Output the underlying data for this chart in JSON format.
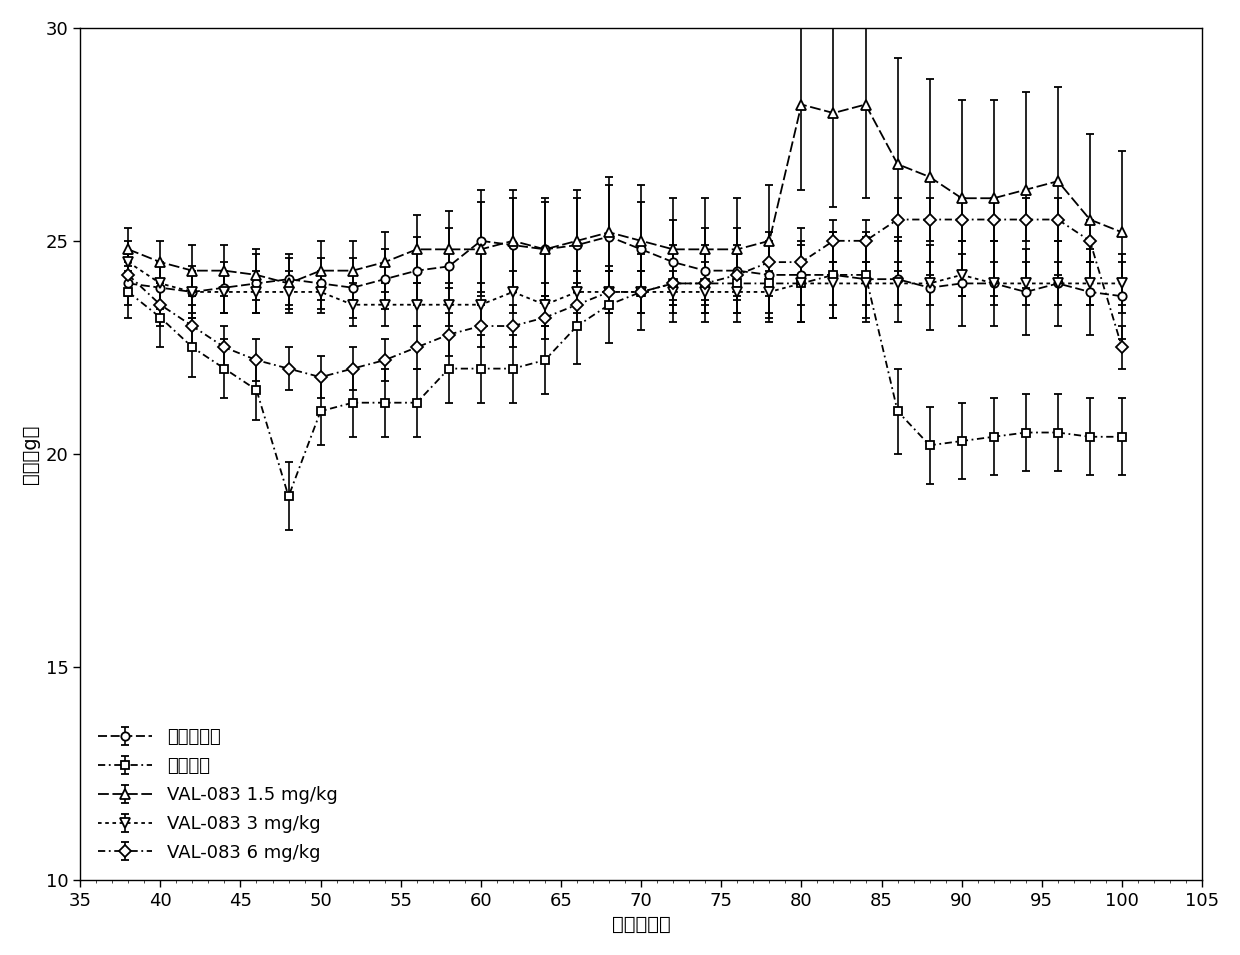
{
  "xlabel": "接种后天数",
  "ylabel": "体重（g）",
  "xlim": [
    35,
    105
  ],
  "ylim": [
    10,
    30
  ],
  "xticks": [
    35,
    40,
    45,
    50,
    55,
    60,
    65,
    70,
    75,
    80,
    85,
    90,
    95,
    100,
    105
  ],
  "yticks": [
    10,
    15,
    20,
    25,
    30
  ],
  "series": {
    "untreated": {
      "label": "未处理对照",
      "marker": "o",
      "x": [
        38,
        40,
        42,
        44,
        46,
        48,
        50,
        52,
        54,
        56,
        58,
        60,
        62,
        64,
        66,
        68,
        70,
        72,
        74,
        76,
        78,
        80,
        82,
        84,
        86,
        88,
        90,
        92,
        94,
        96,
        98,
        100
      ],
      "y": [
        24.0,
        23.9,
        23.8,
        23.9,
        24.0,
        24.1,
        24.0,
        23.9,
        24.1,
        24.3,
        24.4,
        25.0,
        24.9,
        24.8,
        24.9,
        25.1,
        24.8,
        24.5,
        24.3,
        24.3,
        24.2,
        24.2,
        24.2,
        24.1,
        24.1,
        23.9,
        24.0,
        24.0,
        23.8,
        24.0,
        23.8,
        23.7
      ],
      "yerr": [
        0.5,
        0.5,
        0.6,
        0.6,
        0.7,
        0.6,
        0.6,
        0.7,
        0.7,
        0.8,
        0.9,
        1.2,
        1.1,
        1.1,
        1.1,
        1.2,
        1.1,
        1.0,
        1.0,
        1.0,
        1.0,
        1.1,
        1.0,
        1.0,
        1.0,
        1.0,
        1.0,
        1.0,
        1.0,
        1.0,
        1.0,
        1.0
      ]
    },
    "cisplatin": {
      "label": "顺铂对照",
      "marker": "s",
      "x": [
        38,
        40,
        42,
        44,
        46,
        48,
        50,
        52,
        54,
        56,
        58,
        60,
        62,
        64,
        66,
        68,
        70,
        72,
        74,
        76,
        78,
        80,
        82,
        84,
        86,
        88,
        90,
        92,
        94,
        96,
        98,
        100
      ],
      "y": [
        23.8,
        23.2,
        22.5,
        22.0,
        21.5,
        19.0,
        21.0,
        21.2,
        21.2,
        21.2,
        22.0,
        22.0,
        22.0,
        22.2,
        23.0,
        23.5,
        23.8,
        24.0,
        24.0,
        24.0,
        24.0,
        24.0,
        24.2,
        24.2,
        21.0,
        20.2,
        20.3,
        20.4,
        20.5,
        20.5,
        20.4,
        20.4
      ],
      "yerr": [
        0.6,
        0.7,
        0.7,
        0.7,
        0.7,
        0.8,
        0.8,
        0.8,
        0.8,
        0.8,
        0.8,
        0.8,
        0.8,
        0.8,
        0.9,
        0.9,
        0.9,
        0.9,
        0.9,
        0.9,
        0.9,
        0.9,
        1.0,
        1.0,
        1.0,
        0.9,
        0.9,
        0.9,
        0.9,
        0.9,
        0.9,
        0.9
      ]
    },
    "val083_1p5": {
      "label": "VAL-083 1.5 mg/kg",
      "marker": "^",
      "x": [
        38,
        40,
        42,
        44,
        46,
        48,
        50,
        52,
        54,
        56,
        58,
        60,
        62,
        64,
        66,
        68,
        70,
        72,
        74,
        76,
        78,
        80,
        82,
        84,
        86,
        88,
        90,
        92,
        94,
        96,
        98,
        100
      ],
      "y": [
        24.8,
        24.5,
        24.3,
        24.3,
        24.2,
        24.0,
        24.3,
        24.3,
        24.5,
        24.8,
        24.8,
        24.8,
        25.0,
        24.8,
        25.0,
        25.2,
        25.0,
        24.8,
        24.8,
        24.8,
        25.0,
        28.2,
        28.0,
        28.2,
        26.8,
        26.5,
        26.0,
        26.0,
        26.2,
        26.4,
        25.5,
        25.2
      ],
      "yerr": [
        0.5,
        0.5,
        0.6,
        0.6,
        0.6,
        0.6,
        0.7,
        0.7,
        0.7,
        0.8,
        0.9,
        1.1,
        1.2,
        1.2,
        1.2,
        1.3,
        1.3,
        1.2,
        1.2,
        1.2,
        1.3,
        2.0,
        2.2,
        2.2,
        2.5,
        2.3,
        2.3,
        2.3,
        2.3,
        2.2,
        2.0,
        1.9
      ]
    },
    "val083_3": {
      "label": "VAL-083 3 mg/kg",
      "marker": "v",
      "x": [
        38,
        40,
        42,
        44,
        46,
        48,
        50,
        52,
        54,
        56,
        58,
        60,
        62,
        64,
        66,
        68,
        70,
        72,
        74,
        76,
        78,
        80,
        82,
        84,
        86,
        88,
        90,
        92,
        94,
        96,
        98,
        100
      ],
      "y": [
        24.5,
        24.0,
        23.8,
        23.8,
        23.8,
        23.8,
        23.8,
        23.5,
        23.5,
        23.5,
        23.5,
        23.5,
        23.8,
        23.5,
        23.8,
        23.8,
        23.8,
        23.8,
        23.8,
        23.8,
        23.8,
        24.0,
        24.0,
        24.0,
        24.0,
        24.0,
        24.2,
        24.0,
        24.0,
        24.0,
        24.0,
        24.0
      ],
      "yerr": [
        0.5,
        0.5,
        0.5,
        0.5,
        0.5,
        0.5,
        0.5,
        0.5,
        0.5,
        0.5,
        0.5,
        0.5,
        0.5,
        0.5,
        0.5,
        0.5,
        0.5,
        0.5,
        0.5,
        0.5,
        0.5,
        0.5,
        0.5,
        0.5,
        0.5,
        0.5,
        0.5,
        0.5,
        0.5,
        0.5,
        0.5,
        0.5
      ]
    },
    "val083_6": {
      "label": "VAL-083 6 mg/kg",
      "marker": "D",
      "x": [
        38,
        40,
        42,
        44,
        46,
        48,
        50,
        52,
        54,
        56,
        58,
        60,
        62,
        64,
        66,
        68,
        70,
        72,
        74,
        76,
        78,
        80,
        82,
        84,
        86,
        88,
        90,
        92,
        94,
        96,
        98,
        100
      ],
      "y": [
        24.2,
        23.5,
        23.0,
        22.5,
        22.2,
        22.0,
        21.8,
        22.0,
        22.2,
        22.5,
        22.8,
        23.0,
        23.0,
        23.2,
        23.5,
        23.8,
        23.8,
        24.0,
        24.0,
        24.2,
        24.5,
        24.5,
        25.0,
        25.0,
        25.5,
        25.5,
        25.5,
        25.5,
        25.5,
        25.5,
        25.0,
        22.5
      ],
      "yerr": [
        0.5,
        0.5,
        0.5,
        0.5,
        0.5,
        0.5,
        0.5,
        0.5,
        0.5,
        0.5,
        0.5,
        0.5,
        0.5,
        0.5,
        0.5,
        0.5,
        0.5,
        0.5,
        0.5,
        0.5,
        0.5,
        0.5,
        0.5,
        0.5,
        0.5,
        0.5,
        0.5,
        0.5,
        0.5,
        0.5,
        0.5,
        0.5
      ]
    }
  },
  "font_size": 14,
  "tick_font_size": 13
}
